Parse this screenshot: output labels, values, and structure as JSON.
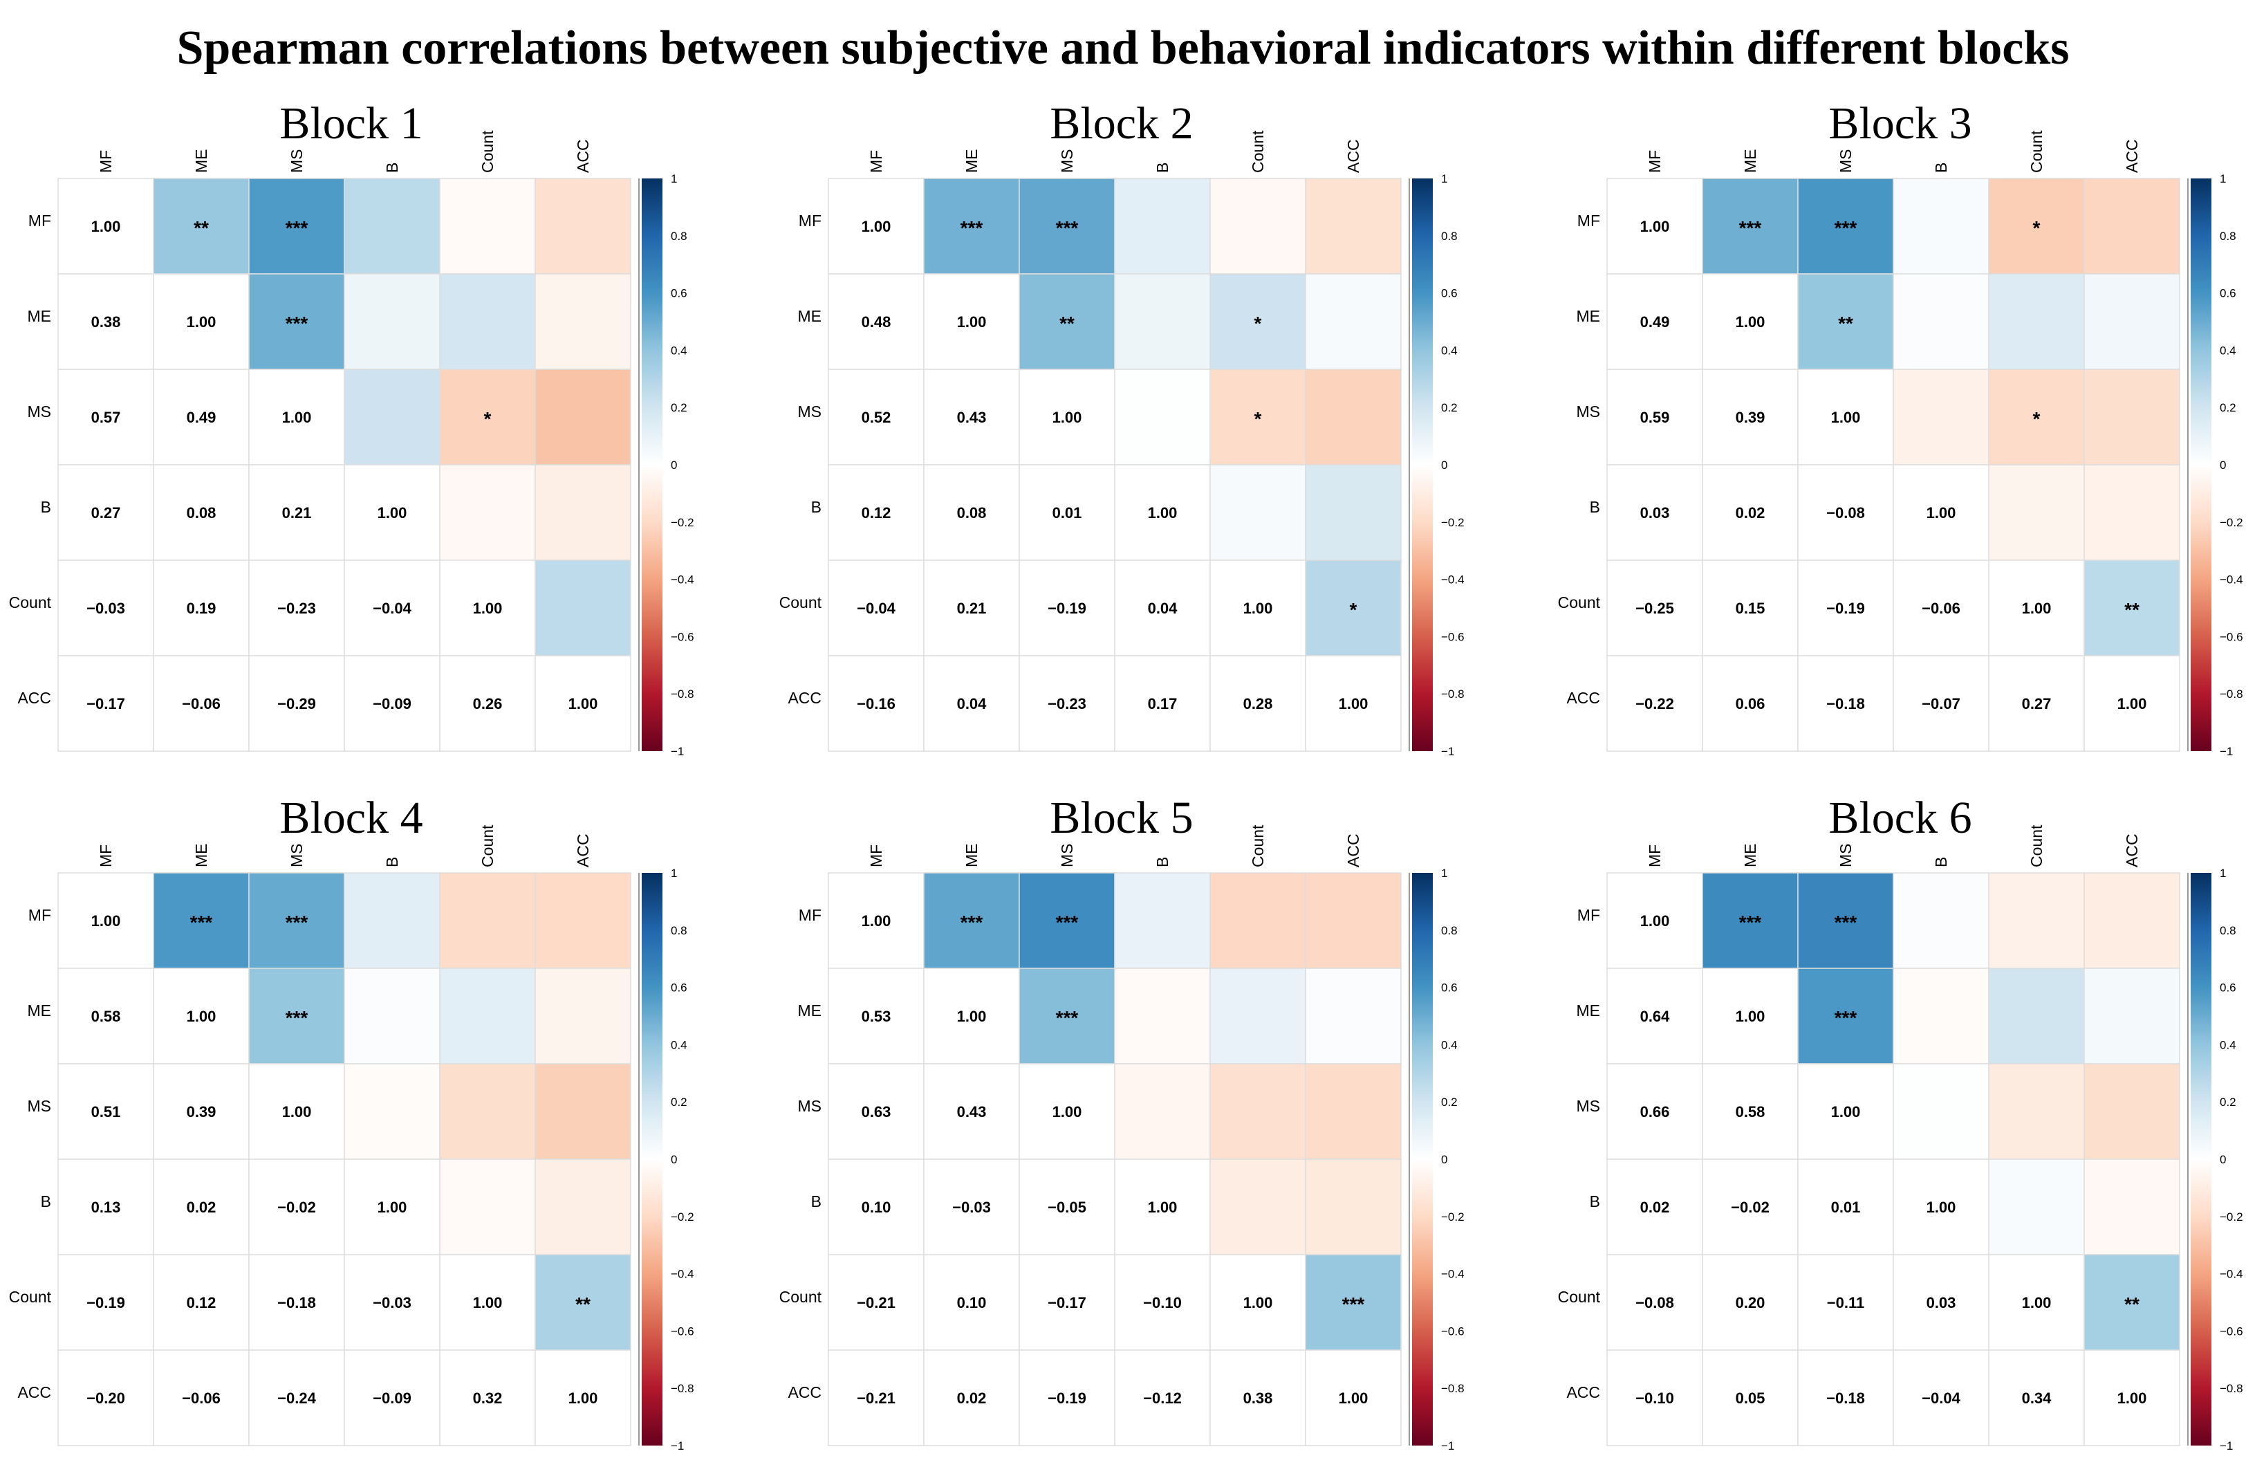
{
  "chart_data": {
    "type": "heatmap",
    "title": "Spearman correlations between subjective and behavioral indicators within different blocks",
    "variables": [
      "MF",
      "ME",
      "MS",
      "B",
      "Count",
      "ACC"
    ],
    "colorbar": {
      "range": [
        -1,
        1
      ],
      "ticks": [
        "1",
        "0.8",
        "0.6",
        "0.4",
        "0.2",
        "0",
        "−0.2",
        "−0.4",
        "−0.6",
        "−0.8",
        "−1"
      ],
      "colors": [
        "#67001f",
        "#b2182b",
        "#d6604d",
        "#f4a582",
        "#fddbc7",
        "#ffffff",
        "#d1e5f0",
        "#92c5de",
        "#4393c3",
        "#2166ac",
        "#053061"
      ]
    },
    "panels": [
      {
        "title": "Block 1",
        "matrix": [
          [
            1.0,
            0.38,
            0.57,
            0.27,
            -0.03,
            -0.17
          ],
          [
            0.38,
            1.0,
            0.49,
            0.08,
            0.19,
            -0.06
          ],
          [
            0.57,
            0.49,
            1.0,
            0.21,
            -0.23,
            -0.29
          ],
          [
            0.27,
            0.08,
            0.21,
            1.0,
            -0.04,
            -0.09
          ],
          [
            -0.03,
            0.19,
            -0.23,
            -0.04,
            1.0,
            0.26
          ],
          [
            -0.17,
            -0.06,
            -0.29,
            -0.09,
            0.26,
            1.0
          ]
        ],
        "lower_text": [
          [
            "1.00",
            "",
            "",
            "",
            "",
            ""
          ],
          [
            "0.38",
            "1.00",
            "",
            "",
            "",
            ""
          ],
          [
            "0.57",
            "0.49",
            "1.00",
            "",
            "",
            ""
          ],
          [
            "0.27",
            "0.08",
            "0.21",
            "1.00",
            "",
            ""
          ],
          [
            "−0.03",
            "0.19",
            "−0.23",
            "−0.04",
            "1.00",
            ""
          ],
          [
            "−0.17",
            "−0.06",
            "−0.29",
            "−0.09",
            "0.26",
            "1.00"
          ]
        ],
        "stars": [
          [
            "",
            "**",
            "***",
            "",
            "",
            ""
          ],
          [
            "",
            "",
            "***",
            "",
            "",
            ""
          ],
          [
            "",
            "",
            "",
            "",
            "*",
            ""
          ],
          [
            "",
            "",
            "",
            "",
            "",
            ""
          ],
          [
            "",
            "",
            "",
            "",
            "",
            ""
          ],
          [
            "",
            "",
            "",
            "",
            "",
            ""
          ]
        ]
      },
      {
        "title": "Block 2",
        "matrix": [
          [
            1.0,
            0.48,
            0.52,
            0.12,
            -0.04,
            -0.16
          ],
          [
            0.48,
            1.0,
            0.43,
            0.08,
            0.21,
            0.04
          ],
          [
            0.52,
            0.43,
            1.0,
            0.01,
            -0.19,
            -0.23
          ],
          [
            0.12,
            0.08,
            0.01,
            1.0,
            0.04,
            0.17
          ],
          [
            -0.04,
            0.21,
            -0.19,
            0.04,
            1.0,
            0.28
          ],
          [
            -0.16,
            0.04,
            -0.23,
            0.17,
            0.28,
            1.0
          ]
        ],
        "lower_text": [
          [
            "1.00",
            "",
            "",
            "",
            "",
            ""
          ],
          [
            "0.48",
            "1.00",
            "",
            "",
            "",
            ""
          ],
          [
            "0.52",
            "0.43",
            "1.00",
            "",
            "",
            ""
          ],
          [
            "0.12",
            "0.08",
            "0.01",
            "1.00",
            "",
            ""
          ],
          [
            "−0.04",
            "0.21",
            "−0.19",
            "0.04",
            "1.00",
            ""
          ],
          [
            "−0.16",
            "0.04",
            "−0.23",
            "0.17",
            "0.28",
            "1.00"
          ]
        ],
        "stars": [
          [
            "",
            "***",
            "***",
            "",
            "",
            ""
          ],
          [
            "",
            "",
            "**",
            "",
            "*",
            ""
          ],
          [
            "",
            "",
            "",
            "",
            "*",
            ""
          ],
          [
            "",
            "",
            "",
            "",
            "",
            ""
          ],
          [
            "",
            "",
            "",
            "",
            "",
            "*"
          ],
          [
            "",
            "",
            "",
            "",
            "",
            ""
          ]
        ]
      },
      {
        "title": "Block 3",
        "matrix": [
          [
            1.0,
            0.49,
            0.59,
            0.03,
            -0.25,
            -0.22
          ],
          [
            0.49,
            1.0,
            0.39,
            0.02,
            0.15,
            0.06
          ],
          [
            0.59,
            0.39,
            1.0,
            -0.08,
            -0.19,
            -0.18
          ],
          [
            0.03,
            0.02,
            -0.08,
            1.0,
            -0.06,
            -0.07
          ],
          [
            -0.25,
            0.15,
            -0.19,
            -0.06,
            1.0,
            0.27
          ],
          [
            -0.22,
            0.06,
            -0.18,
            -0.07,
            0.27,
            1.0
          ]
        ],
        "lower_text": [
          [
            "1.00",
            "",
            "",
            "",
            "",
            ""
          ],
          [
            "0.49",
            "1.00",
            "",
            "",
            "",
            ""
          ],
          [
            "0.59",
            "0.39",
            "1.00",
            "",
            "",
            ""
          ],
          [
            "0.03",
            "0.02",
            "−0.08",
            "1.00",
            "",
            ""
          ],
          [
            "−0.25",
            "0.15",
            "−0.19",
            "−0.06",
            "1.00",
            ""
          ],
          [
            "−0.22",
            "0.06",
            "−0.18",
            "−0.07",
            "0.27",
            "1.00"
          ]
        ],
        "stars": [
          [
            "",
            "***",
            "***",
            "",
            "*",
            ""
          ],
          [
            "",
            "",
            "**",
            "",
            "",
            ""
          ],
          [
            "",
            "",
            "",
            "",
            "*",
            ""
          ],
          [
            "",
            "",
            "",
            "",
            "",
            ""
          ],
          [
            "",
            "",
            "",
            "",
            "",
            "**"
          ],
          [
            "",
            "",
            "",
            "",
            "",
            ""
          ]
        ]
      },
      {
        "title": "Block 4",
        "matrix": [
          [
            1.0,
            0.58,
            0.51,
            0.13,
            -0.19,
            -0.2
          ],
          [
            0.58,
            1.0,
            0.39,
            0.02,
            0.12,
            -0.06
          ],
          [
            0.51,
            0.39,
            1.0,
            -0.02,
            -0.18,
            -0.24
          ],
          [
            0.13,
            0.02,
            -0.02,
            1.0,
            -0.03,
            -0.09
          ],
          [
            -0.19,
            0.12,
            -0.18,
            -0.03,
            1.0,
            0.32
          ],
          [
            -0.2,
            -0.06,
            -0.24,
            -0.09,
            0.32,
            1.0
          ]
        ],
        "lower_text": [
          [
            "1.00",
            "",
            "",
            "",
            "",
            ""
          ],
          [
            "0.58",
            "1.00",
            "",
            "",
            "",
            ""
          ],
          [
            "0.51",
            "0.39",
            "1.00",
            "",
            "",
            ""
          ],
          [
            "0.13",
            "0.02",
            "−0.02",
            "1.00",
            "",
            ""
          ],
          [
            "−0.19",
            "0.12",
            "−0.18",
            "−0.03",
            "1.00",
            ""
          ],
          [
            "−0.20",
            "−0.06",
            "−0.24",
            "−0.09",
            "0.32",
            "1.00"
          ]
        ],
        "stars": [
          [
            "",
            "***",
            "***",
            "",
            "",
            ""
          ],
          [
            "",
            "",
            "***",
            "",
            "",
            ""
          ],
          [
            "",
            "",
            "",
            "",
            "",
            ""
          ],
          [
            "",
            "",
            "",
            "",
            "",
            ""
          ],
          [
            "",
            "",
            "",
            "",
            "",
            "**"
          ],
          [
            "",
            "",
            "",
            "",
            "",
            ""
          ]
        ]
      },
      {
        "title": "Block 5",
        "matrix": [
          [
            1.0,
            0.53,
            0.63,
            0.1,
            -0.21,
            -0.21
          ],
          [
            0.53,
            1.0,
            0.43,
            -0.03,
            0.1,
            0.02
          ],
          [
            0.63,
            0.43,
            1.0,
            -0.05,
            -0.17,
            -0.19
          ],
          [
            0.1,
            -0.03,
            -0.05,
            1.0,
            -0.1,
            -0.12
          ],
          [
            -0.21,
            0.1,
            -0.17,
            -0.1,
            1.0,
            0.38
          ],
          [
            -0.21,
            0.02,
            -0.19,
            -0.12,
            0.38,
            1.0
          ]
        ],
        "lower_text": [
          [
            "1.00",
            "",
            "",
            "",
            "",
            ""
          ],
          [
            "0.53",
            "1.00",
            "",
            "",
            "",
            ""
          ],
          [
            "0.63",
            "0.43",
            "1.00",
            "",
            "",
            ""
          ],
          [
            "0.10",
            "−0.03",
            "−0.05",
            "1.00",
            "",
            ""
          ],
          [
            "−0.21",
            "0.10",
            "−0.17",
            "−0.10",
            "1.00",
            ""
          ],
          [
            "−0.21",
            "0.02",
            "−0.19",
            "−0.12",
            "0.38",
            "1.00"
          ]
        ],
        "stars": [
          [
            "",
            "***",
            "***",
            "",
            "",
            ""
          ],
          [
            "",
            "",
            "***",
            "",
            "",
            ""
          ],
          [
            "",
            "",
            "",
            "",
            "",
            ""
          ],
          [
            "",
            "",
            "",
            "",
            "",
            ""
          ],
          [
            "",
            "",
            "",
            "",
            "",
            "***"
          ],
          [
            "",
            "",
            "",
            "",
            "",
            ""
          ]
        ]
      },
      {
        "title": "Block 6",
        "matrix": [
          [
            1.0,
            0.64,
            0.66,
            0.02,
            -0.08,
            -0.1
          ],
          [
            0.64,
            1.0,
            0.58,
            -0.02,
            0.2,
            0.05
          ],
          [
            0.66,
            0.58,
            1.0,
            0.01,
            -0.11,
            -0.18
          ],
          [
            0.02,
            -0.02,
            0.01,
            1.0,
            0.03,
            -0.04
          ],
          [
            -0.08,
            0.2,
            -0.11,
            0.03,
            1.0,
            0.34
          ],
          [
            -0.1,
            0.05,
            -0.18,
            -0.04,
            0.34,
            1.0
          ]
        ],
        "lower_text": [
          [
            "1.00",
            "",
            "",
            "",
            "",
            ""
          ],
          [
            "0.64",
            "1.00",
            "",
            "",
            "",
            ""
          ],
          [
            "0.66",
            "0.58",
            "1.00",
            "",
            "",
            ""
          ],
          [
            "0.02",
            "−0.02",
            "0.01",
            "1.00",
            "",
            ""
          ],
          [
            "−0.08",
            "0.20",
            "−0.11",
            "0.03",
            "1.00",
            ""
          ],
          [
            "−0.10",
            "0.05",
            "−0.18",
            "−0.04",
            "0.34",
            "1.00"
          ]
        ],
        "stars": [
          [
            "",
            "***",
            "***",
            "",
            "",
            ""
          ],
          [
            "",
            "",
            "***",
            "",
            "",
            ""
          ],
          [
            "",
            "",
            "",
            "",
            "",
            ""
          ],
          [
            "",
            "",
            "",
            "",
            "",
            ""
          ],
          [
            "",
            "",
            "",
            "",
            "",
            "**"
          ],
          [
            "",
            "",
            "",
            "",
            "",
            ""
          ]
        ]
      }
    ]
  }
}
